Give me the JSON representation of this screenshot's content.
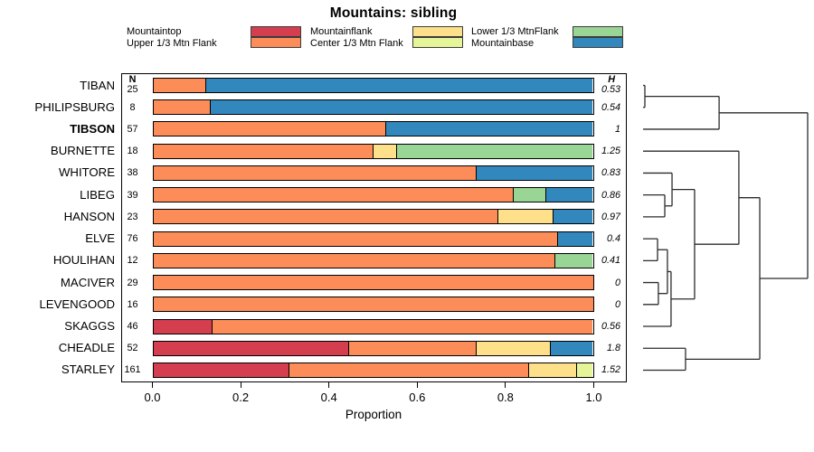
{
  "title": "Mountains: sibling",
  "legend": {
    "columns": [
      {
        "items": [
          {
            "label": "Mountaintop",
            "color": "#D53E4F"
          },
          {
            "label": "Upper 1/3 Mtn Flank",
            "color": "#FC8D59"
          }
        ]
      },
      {
        "items": [
          {
            "label": "Mountainflank",
            "color": "#FEE08B"
          },
          {
            "label": "Center 1/3 Mtn Flank",
            "color": "#E6F598"
          }
        ]
      },
      {
        "items": [
          {
            "label": "Lower 1/3 MtnFlank",
            "color": "#99D594"
          },
          {
            "label": "Mountainbase",
            "color": "#3288BD"
          }
        ]
      }
    ]
  },
  "chart_data": {
    "type": "bar",
    "orientation": "horizontal",
    "stacked": true,
    "title": "Mountains: sibling",
    "xlabel": "Proportion",
    "xlim": [
      0,
      1
    ],
    "xticks": [
      0,
      0.2,
      0.4,
      0.6,
      0.8,
      1.0
    ],
    "xtick_labels": [
      "0.0",
      "0.2",
      "0.4",
      "0.6",
      "0.8",
      "1.0"
    ],
    "n_header": "N",
    "h_header": "H",
    "categories": [
      "Mountaintop",
      "Upper 1/3 Mtn Flank",
      "Mountainflank",
      "Center 1/3 Mtn Flank",
      "Lower 1/3 MtnFlank",
      "Mountainbase"
    ],
    "palette": {
      "Mountaintop": "#D53E4F",
      "Upper 1/3 Mtn Flank": "#FC8D59",
      "Mountainflank": "#FEE08B",
      "Center 1/3 Mtn Flank": "#E6F598",
      "Lower 1/3 MtnFlank": "#99D594",
      "Mountainbase": "#3288BD"
    },
    "rows": [
      {
        "label": "TIBAN",
        "n": "25",
        "h": "0.53",
        "bold": false,
        "segments": [
          [
            "Upper 1/3 Mtn Flank",
            0.12
          ],
          [
            "Mountainbase",
            0.88
          ]
        ]
      },
      {
        "label": "PHILIPSBURG",
        "n": "8",
        "h": "0.54",
        "bold": false,
        "segments": [
          [
            "Upper 1/3 Mtn Flank",
            0.13
          ],
          [
            "Mountainbase",
            0.87
          ]
        ]
      },
      {
        "label": "TIBSON",
        "n": "57",
        "h": "1",
        "bold": true,
        "segments": [
          [
            "Upper 1/3 Mtn Flank",
            0.53
          ],
          [
            "Mountainbase",
            0.47
          ]
        ]
      },
      {
        "label": "BURNETTE",
        "n": "18",
        "h": "1.25",
        "bold": false,
        "segments": [
          [
            "Upper 1/3 Mtn Flank",
            0.5
          ],
          [
            "Mountainflank",
            0.055
          ],
          [
            "Lower 1/3 MtnFlank",
            0.445
          ]
        ]
      },
      {
        "label": "WHITORE",
        "n": "38",
        "h": "0.83",
        "bold": false,
        "segments": [
          [
            "Upper 1/3 Mtn Flank",
            0.735
          ],
          [
            "Mountainbase",
            0.265
          ]
        ]
      },
      {
        "label": "LIBEG",
        "n": "39",
        "h": "0.86",
        "bold": false,
        "segments": [
          [
            "Upper 1/3 Mtn Flank",
            0.82
          ],
          [
            "Lower 1/3 MtnFlank",
            0.075
          ],
          [
            "Mountainbase",
            0.105
          ]
        ]
      },
      {
        "label": "HANSON",
        "n": "23",
        "h": "0.97",
        "bold": false,
        "segments": [
          [
            "Upper 1/3 Mtn Flank",
            0.785
          ],
          [
            "Mountainflank",
            0.125
          ],
          [
            "Mountainbase",
            0.09
          ]
        ]
      },
      {
        "label": "ELVE",
        "n": "76",
        "h": "0.4",
        "bold": false,
        "segments": [
          [
            "Upper 1/3 Mtn Flank",
            0.92
          ],
          [
            "Mountainbase",
            0.08
          ]
        ]
      },
      {
        "label": "HOULIHAN",
        "n": "12",
        "h": "0.41",
        "bold": false,
        "segments": [
          [
            "Upper 1/3 Mtn Flank",
            0.915
          ],
          [
            "Lower 1/3 MtnFlank",
            0.085
          ]
        ]
      },
      {
        "label": "MACIVER",
        "n": "29",
        "h": "0",
        "bold": false,
        "segments": [
          [
            "Upper 1/3 Mtn Flank",
            1.0
          ]
        ]
      },
      {
        "label": "LEVENGOOD",
        "n": "16",
        "h": "0",
        "bold": false,
        "segments": [
          [
            "Upper 1/3 Mtn Flank",
            1.0
          ]
        ]
      },
      {
        "label": "SKAGGS",
        "n": "46",
        "h": "0.56",
        "bold": false,
        "segments": [
          [
            "Mountaintop",
            0.135
          ],
          [
            "Upper 1/3 Mtn Flank",
            0.865
          ]
        ]
      },
      {
        "label": "CHEADLE",
        "n": "52",
        "h": "1.8",
        "bold": false,
        "segments": [
          [
            "Mountaintop",
            0.445
          ],
          [
            "Upper 1/3 Mtn Flank",
            0.29
          ],
          [
            "Mountainflank",
            0.17
          ],
          [
            "Mountainbase",
            0.095
          ]
        ]
      },
      {
        "label": "STARLEY",
        "n": "161",
        "h": "1.52",
        "bold": false,
        "segments": [
          [
            "Mountaintop",
            0.31
          ],
          [
            "Upper 1/3 Mtn Flank",
            0.545
          ],
          [
            "Mountainflank",
            0.11
          ],
          [
            "Center 1/3 Mtn Flank",
            0.035
          ]
        ]
      }
    ],
    "dendrogram": {
      "note": "heights normalized 0-1 across drawn span; merges reference row labels or prior merge ids",
      "merges": [
        {
          "id": "n1",
          "a": "TIBAN",
          "b": "PHILIPSBURG",
          "height": 0.011
        },
        {
          "id": "n2",
          "a": "n1",
          "b": "TIBSON",
          "height": 0.462
        },
        {
          "id": "n3",
          "a": "LIBEG",
          "b": "HANSON",
          "height": 0.132
        },
        {
          "id": "n4",
          "a": "WHITORE",
          "b": "n3",
          "height": 0.176
        },
        {
          "id": "n5",
          "a": "ELVE",
          "b": "HOULIHAN",
          "height": 0.088
        },
        {
          "id": "n6",
          "a": "MACIVER",
          "b": "LEVENGOOD",
          "height": 0.093
        },
        {
          "id": "n7",
          "a": "n5",
          "b": "n6",
          "height": 0.148
        },
        {
          "id": "n8",
          "a": "n7",
          "b": "SKAGGS",
          "height": 0.17
        },
        {
          "id": "n9",
          "a": "n4",
          "b": "n8",
          "height": 0.313
        },
        {
          "id": "n10",
          "a": "BURNETTE",
          "b": "n9",
          "height": 0.582
        },
        {
          "id": "n12",
          "a": "CHEADLE",
          "b": "STARLEY",
          "height": 0.258
        },
        {
          "id": "n11",
          "a": "n10",
          "b": "n12",
          "height": 0.709
        },
        {
          "id": "n13",
          "a": "n2",
          "b": "n11",
          "height": 1.0
        }
      ]
    }
  }
}
